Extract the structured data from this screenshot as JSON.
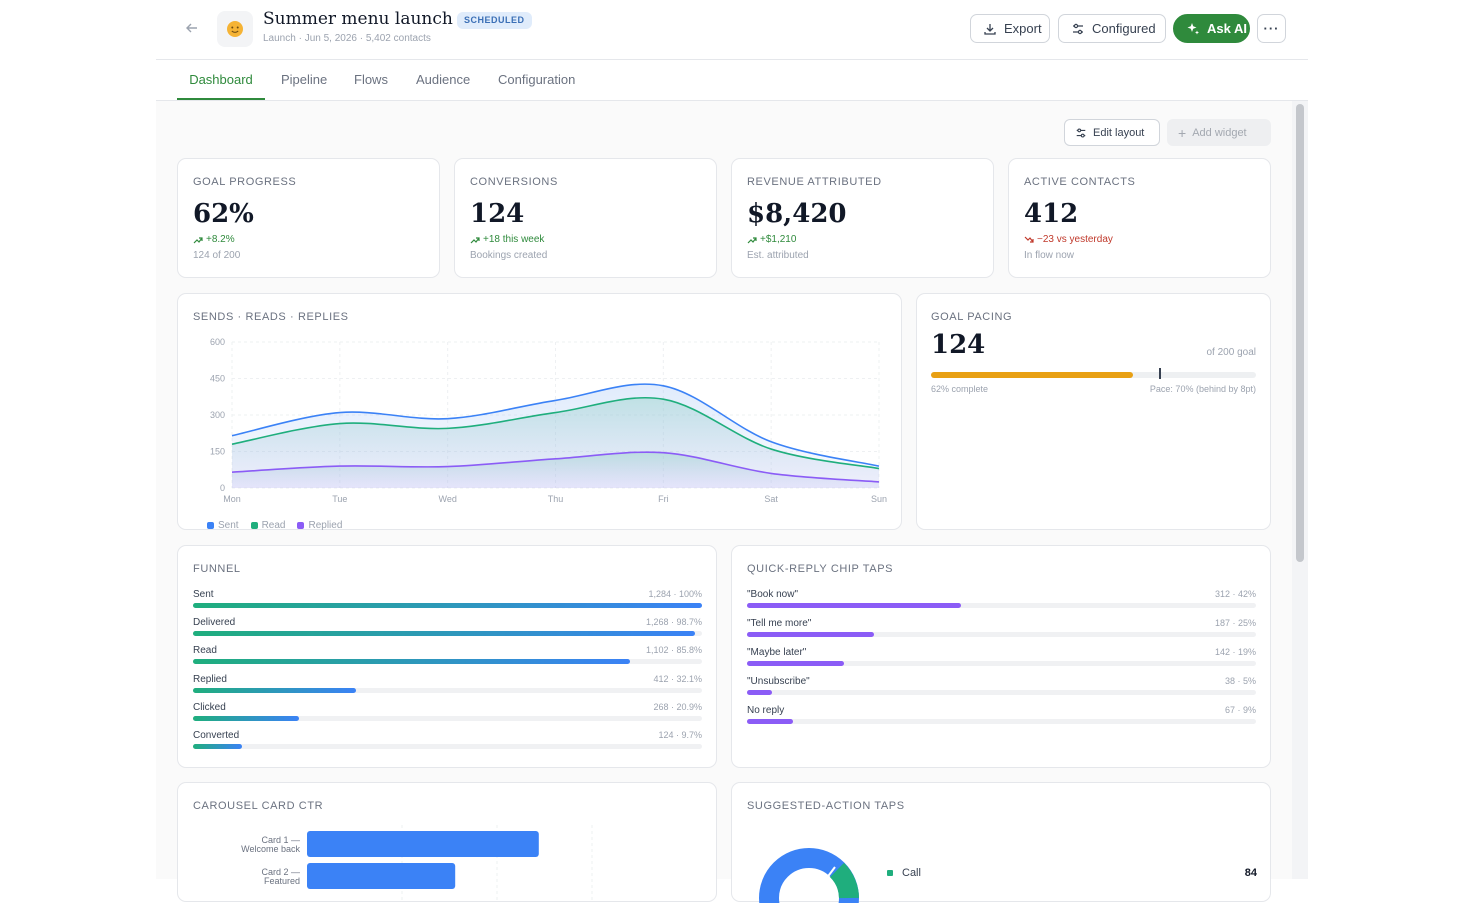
{
  "header": {
    "title": "Summer menu launch",
    "status_badge": "SCHEDULED",
    "subtitle": "Launch · Jun 5, 2026 · 5,402 contacts",
    "avatar_icon": "sun-emoji",
    "buttons": {
      "export": "Export",
      "configured": "Configured",
      "ask_ai": "Ask AI"
    },
    "brand_color": "#2f8a3c"
  },
  "tabs": [
    {
      "label": "Dashboard",
      "active": true
    },
    {
      "label": "Pipeline",
      "active": false
    },
    {
      "label": "Flows",
      "active": false
    },
    {
      "label": "Audience",
      "active": false
    },
    {
      "label": "Configuration",
      "active": false
    }
  ],
  "toolbar": {
    "edit_layout": "Edit layout",
    "add_widget": "Add widget"
  },
  "kpis": [
    {
      "title": "GOAL PROGRESS",
      "value": "62%",
      "delta": "+8.2%",
      "trend": "up",
      "sub": "124 of 200"
    },
    {
      "title": "CONVERSIONS",
      "value": "124",
      "delta": "+18 this week",
      "trend": "up",
      "sub": "Bookings created"
    },
    {
      "title": "REVENUE ATTRIBUTED",
      "value": "$8,420",
      "delta": "+$1,210",
      "trend": "up",
      "sub": "Est. attributed"
    },
    {
      "title": "ACTIVE CONTACTS",
      "value": "412",
      "delta": "−23 vs yesterday",
      "trend": "down",
      "sub": "In flow now"
    }
  ],
  "chart_data": [
    {
      "type": "area",
      "title": "SENDS · READS · REPLIES",
      "categories": [
        "Mon",
        "Tue",
        "Wed",
        "Thu",
        "Fri",
        "Sat",
        "Sun"
      ],
      "yticks": [
        "0",
        "150",
        "300",
        "450",
        "600"
      ],
      "ylim": [
        0,
        600
      ],
      "series": [
        {
          "name": "Sent",
          "color": "#3b82f6",
          "values": [
            215,
            310,
            285,
            360,
            420,
            190,
            90
          ]
        },
        {
          "name": "Read",
          "color": "#1fae7d",
          "values": [
            180,
            265,
            245,
            310,
            365,
            160,
            80
          ]
        },
        {
          "name": "Replied",
          "color": "#8b5cf6",
          "values": [
            65,
            90,
            88,
            120,
            145,
            60,
            25
          ]
        }
      ],
      "grid": true,
      "legend": "bottom-left"
    },
    {
      "type": "bar",
      "orientation": "horizontal",
      "title": "CAROUSEL CARD CTR",
      "categories": [
        "Card 1 — Welcome back",
        "Card 2 — Featured"
      ],
      "values": [
        6.1,
        3.9
      ],
      "xlim": [
        0,
        10
      ],
      "color": "#3b82f6"
    }
  ],
  "goal_pacing": {
    "title": "GOAL PACING",
    "value": "124",
    "goal_label": "of 200 goal",
    "progress": 0.62,
    "pace": 0.7,
    "left_label": "62% complete",
    "right_label": "Pace: 70% (behind by 8pt)",
    "color": "#e8a014"
  },
  "funnel": {
    "title": "FUNNEL",
    "rows": [
      {
        "label": "Sent",
        "stat": "1,284 · 100%",
        "pct": 100
      },
      {
        "label": "Delivered",
        "stat": "1,268 · 98.7%",
        "pct": 98.7
      },
      {
        "label": "Read",
        "stat": "1,102 · 85.8%",
        "pct": 85.8
      },
      {
        "label": "Replied",
        "stat": "412 · 32.1%",
        "pct": 32.1
      },
      {
        "label": "Clicked",
        "stat": "268 · 20.9%",
        "pct": 20.9
      },
      {
        "label": "Converted",
        "stat": "124 · 9.7%",
        "pct": 9.7
      }
    ]
  },
  "chips": {
    "title": "QUICK-REPLY CHIP TAPS",
    "rows": [
      {
        "label": "\"Book now\"",
        "stat": "312 · 42%",
        "pct": 42
      },
      {
        "label": "\"Tell me more\"",
        "stat": "187 · 25%",
        "pct": 25
      },
      {
        "label": "\"Maybe later\"",
        "stat": "142 · 19%",
        "pct": 19
      },
      {
        "label": "\"Unsubscribe\"",
        "stat": "38 · 5%",
        "pct": 5
      },
      {
        "label": "No reply",
        "stat": "67 · 9%",
        "pct": 9
      }
    ]
  },
  "carousel": {
    "title": "CAROUSEL CARD CTR"
  },
  "suggested": {
    "title": "SUGGESTED-ACTION TAPS",
    "legend": [
      {
        "label": "Call",
        "value": "84",
        "color": "#1fae7d"
      }
    ]
  }
}
